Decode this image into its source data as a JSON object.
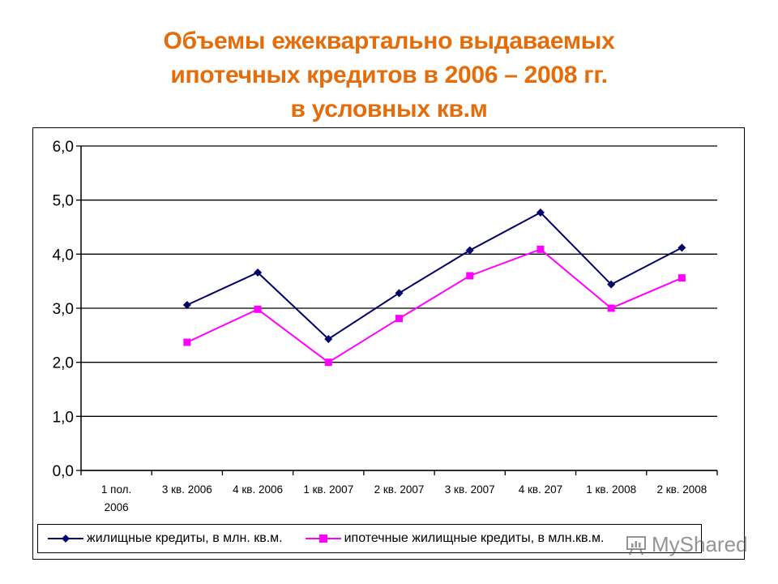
{
  "title": {
    "line1": "Объемы ежеквартально выдаваемых",
    "line2": "ипотечных кредитов в 2006 – 2008 гг.",
    "line3": "в условных кв.м",
    "color": "#E46C0A"
  },
  "legend": {
    "series1_label": "жилищные кредиты, в млн. кв.м.",
    "series2_label": "ипотечные жилищные кредиты, в млн.кв.м."
  },
  "watermark": {
    "text": "MyShared"
  },
  "chart_data": {
    "type": "line",
    "title": "Объемы ежеквартально выдаваемых ипотечных кредитов в 2006 – 2008 гг. в условных кв.м",
    "xlabel": "",
    "ylabel": "",
    "ylim": [
      0,
      6
    ],
    "yticks": [
      "0,0",
      "1,0",
      "2,0",
      "3,0",
      "4,0",
      "5,0",
      "6,0"
    ],
    "grid": true,
    "legend_position": "bottom",
    "categories": [
      "1 пол. 2006",
      "3 кв. 2006",
      "4 кв. 2006",
      "1 кв. 2007",
      "2 кв. 2007",
      "3 кв. 2007",
      "4 кв. 207",
      "1 кв. 2008",
      "2 кв. 2008"
    ],
    "category_lines": [
      [
        "1 пол.",
        "2006"
      ],
      [
        "3 кв. 2006"
      ],
      [
        "4 кв. 2006"
      ],
      [
        "1 кв. 2007"
      ],
      [
        "2 кв. 2007"
      ],
      [
        "3 кв. 2007"
      ],
      [
        "4 кв. 207"
      ],
      [
        "1 кв. 2008"
      ],
      [
        "2 кв. 2008"
      ]
    ],
    "series": [
      {
        "name": "жилищные кредиты, в млн. кв.м.",
        "color": "#000066",
        "marker": "diamond",
        "values": [
          null,
          3.06,
          3.66,
          2.43,
          3.28,
          4.07,
          4.77,
          3.44,
          4.12
        ]
      },
      {
        "name": "ипотечные жилищные кредиты, в млн.кв.м.",
        "color": "#FF00FF",
        "marker": "square",
        "values": [
          null,
          2.37,
          2.98,
          2.0,
          2.81,
          3.6,
          4.09,
          3.0,
          3.56
        ]
      }
    ]
  }
}
